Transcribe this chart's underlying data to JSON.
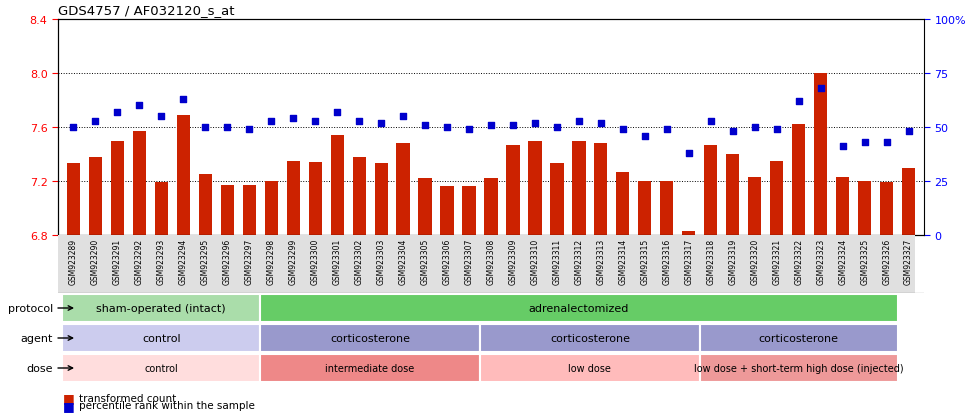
{
  "title": "GDS4757 / AF032120_s_at",
  "samples": [
    "GSM923289",
    "GSM923290",
    "GSM923291",
    "GSM923292",
    "GSM923293",
    "GSM923294",
    "GSM923295",
    "GSM923296",
    "GSM923297",
    "GSM923298",
    "GSM923299",
    "GSM923300",
    "GSM923301",
    "GSM923302",
    "GSM923303",
    "GSM923304",
    "GSM923305",
    "GSM923306",
    "GSM923307",
    "GSM923308",
    "GSM923309",
    "GSM923310",
    "GSM923311",
    "GSM923312",
    "GSM923313",
    "GSM923314",
    "GSM923315",
    "GSM923316",
    "GSM923317",
    "GSM923318",
    "GSM923319",
    "GSM923320",
    "GSM923321",
    "GSM923322",
    "GSM923323",
    "GSM923324",
    "GSM923325",
    "GSM923326",
    "GSM923327"
  ],
  "bar_values": [
    7.33,
    7.38,
    7.5,
    7.57,
    7.19,
    7.69,
    7.25,
    7.17,
    7.17,
    7.2,
    7.35,
    7.34,
    7.54,
    7.38,
    7.33,
    7.48,
    7.22,
    7.16,
    7.16,
    7.22,
    7.47,
    7.5,
    7.33,
    7.5,
    7.48,
    7.27,
    7.2,
    7.2,
    6.83,
    7.47,
    7.4,
    7.23,
    7.35,
    7.62,
    8.0,
    7.23,
    7.2,
    7.19,
    7.3
  ],
  "percentile_values": [
    50,
    53,
    57,
    60,
    55,
    63,
    50,
    50,
    49,
    53,
    54,
    53,
    57,
    53,
    52,
    55,
    51,
    50,
    49,
    51,
    51,
    52,
    50,
    53,
    52,
    49,
    46,
    49,
    38,
    53,
    48,
    50,
    49,
    62,
    68,
    41,
    43,
    43,
    48
  ],
  "ylim_left": [
    6.8,
    8.4
  ],
  "ylim_right": [
    0,
    100
  ],
  "yticks_left": [
    6.8,
    7.2,
    7.6,
    8.0,
    8.4
  ],
  "yticks_right": [
    0,
    25,
    50,
    75,
    100
  ],
  "hlines": [
    7.2,
    7.6,
    8.0
  ],
  "bar_color": "#cc2200",
  "dot_color": "#0000cc",
  "bar_baseline": 6.8,
  "protocol_groups": [
    {
      "label": "sham-operated (intact)",
      "start": 0,
      "end": 9,
      "color": "#aaddaa"
    },
    {
      "label": "adrenalectomized",
      "start": 9,
      "end": 38,
      "color": "#66cc66"
    }
  ],
  "agent_groups": [
    {
      "label": "control",
      "start": 0,
      "end": 9,
      "color": "#ccccee"
    },
    {
      "label": "corticosterone",
      "start": 9,
      "end": 19,
      "color": "#9999cc"
    },
    {
      "label": "corticosterone",
      "start": 19,
      "end": 29,
      "color": "#9999cc"
    },
    {
      "label": "corticosterone",
      "start": 29,
      "end": 38,
      "color": "#9999cc"
    }
  ],
  "dose_groups": [
    {
      "label": "control",
      "start": 0,
      "end": 9,
      "color": "#ffdddd"
    },
    {
      "label": "intermediate dose",
      "start": 9,
      "end": 19,
      "color": "#ee8888"
    },
    {
      "label": "low dose",
      "start": 19,
      "end": 29,
      "color": "#ffbbbb"
    },
    {
      "label": "low dose + short-term high dose (injected)",
      "start": 29,
      "end": 38,
      "color": "#ee9999"
    }
  ],
  "legend_bar_label": "transformed count",
  "legend_dot_label": "percentile rank within the sample",
  "row_labels": [
    "protocol",
    "agent",
    "dose"
  ],
  "background_color": "#ffffff",
  "plot_bg_color": "#ffffff"
}
